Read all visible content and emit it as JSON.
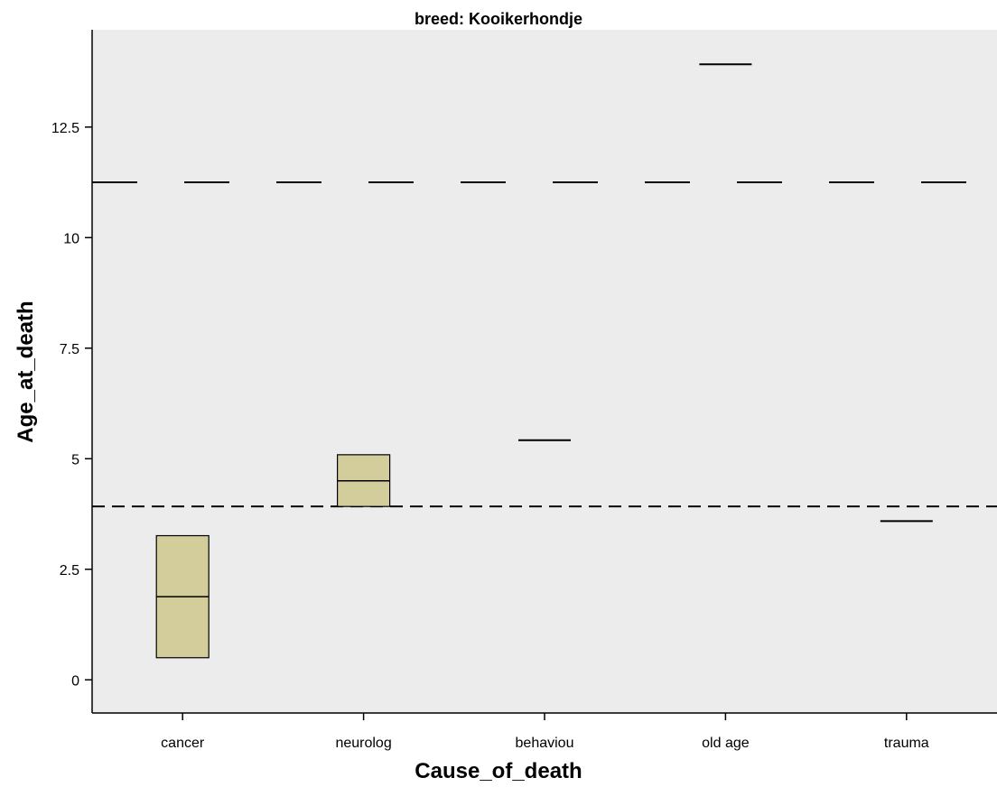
{
  "chart_data": {
    "type": "boxplot",
    "title": "breed: Kooikerhondje",
    "xlabel": "Cause_of_death",
    "ylabel": "Age_at_death",
    "categories": [
      "cancer",
      "neurolog",
      "behaviou",
      "old age",
      "trauma"
    ],
    "ylim": [
      -0.75,
      14.7
    ],
    "yticks": [
      0,
      2.5,
      5,
      7.5,
      10,
      12.5
    ],
    "ytick_labels": [
      "0",
      "2.5",
      "5",
      "7.5",
      "10",
      "12.5"
    ],
    "boxes": [
      {
        "category": "cancer",
        "min": 0.5,
        "q1": 0.5,
        "median": 1.88,
        "q3": 3.26,
        "max": 3.26
      },
      {
        "category": "neurolog",
        "min": 3.92,
        "q1": 3.92,
        "median": 4.5,
        "q3": 5.09,
        "max": 5.09
      },
      {
        "category": "behaviou",
        "min": 5.42,
        "q1": 5.42,
        "median": 5.42,
        "q3": 5.42,
        "max": 5.42
      },
      {
        "category": "old age",
        "min": 13.92,
        "q1": 13.92,
        "median": 13.92,
        "q3": 13.92,
        "max": 13.92
      },
      {
        "category": "trauma",
        "min": 3.59,
        "q1": 3.59,
        "median": 3.59,
        "q3": 3.59,
        "max": 3.59
      }
    ],
    "reference_lines": [
      {
        "y": 11.25,
        "style": "long-dash"
      },
      {
        "y": 3.92,
        "style": "short-dash"
      }
    ],
    "grid": false,
    "colors": {
      "box_fill": "#d3cd9b",
      "plot_bg": "#ececec",
      "stroke": "#000000"
    }
  }
}
